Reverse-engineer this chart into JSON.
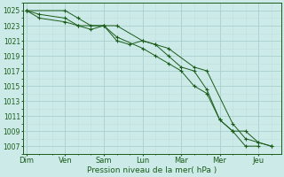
{
  "background_color": "#cceae7",
  "grid_color_major": "#aacfcc",
  "grid_color_minor": "#c0dedd",
  "line_color": "#1a5c1a",
  "x_labels": [
    "Dim",
    "Ven",
    "Sam",
    "Lun",
    "Mar",
    "Mer",
    "Jeu"
  ],
  "xlabel": "Pression niveau de la mer( hPa )",
  "ylim": [
    1006,
    1026
  ],
  "yticks": [
    1007,
    1009,
    1011,
    1013,
    1015,
    1017,
    1019,
    1021,
    1023,
    1025
  ],
  "series1_x": [
    0,
    8,
    24,
    32,
    48,
    56,
    72,
    80,
    88,
    96,
    104,
    112,
    120,
    128,
    136,
    144
  ],
  "series1_y": [
    1025,
    1024.5,
    1024,
    1023,
    1023,
    1023,
    1021,
    1020.5,
    1019,
    1017.5,
    1017,
    1014.5,
    1010.5,
    1009,
    1007,
    1007
  ],
  "series2_x": [
    0,
    24,
    32,
    40,
    48,
    56,
    72,
    80,
    88,
    96,
    104,
    112,
    120,
    128,
    136,
    144,
    152
  ],
  "series2_y": [
    1025,
    1025,
    1024,
    1023,
    1023,
    1021.5,
    1020,
    1019,
    1018,
    1017,
    1015,
    1014,
    1010.5,
    1009,
    1009,
    1007.5,
    1007
  ],
  "series3_x": [
    0,
    8,
    24,
    32,
    40,
    48,
    56,
    64,
    72,
    80,
    88,
    104,
    112,
    128,
    136,
    144,
    152
  ],
  "series3_y": [
    1025,
    1024,
    1023.5,
    1023,
    1022.5,
    1023,
    1021,
    1020.5,
    1021,
    1020.5,
    1020,
    1017.5,
    1017,
    1010,
    1008,
    1007.5,
    1007
  ],
  "x_day_positions": [
    0,
    24,
    48,
    72,
    96,
    120,
    144
  ],
  "xlim": [
    -2,
    158
  ]
}
